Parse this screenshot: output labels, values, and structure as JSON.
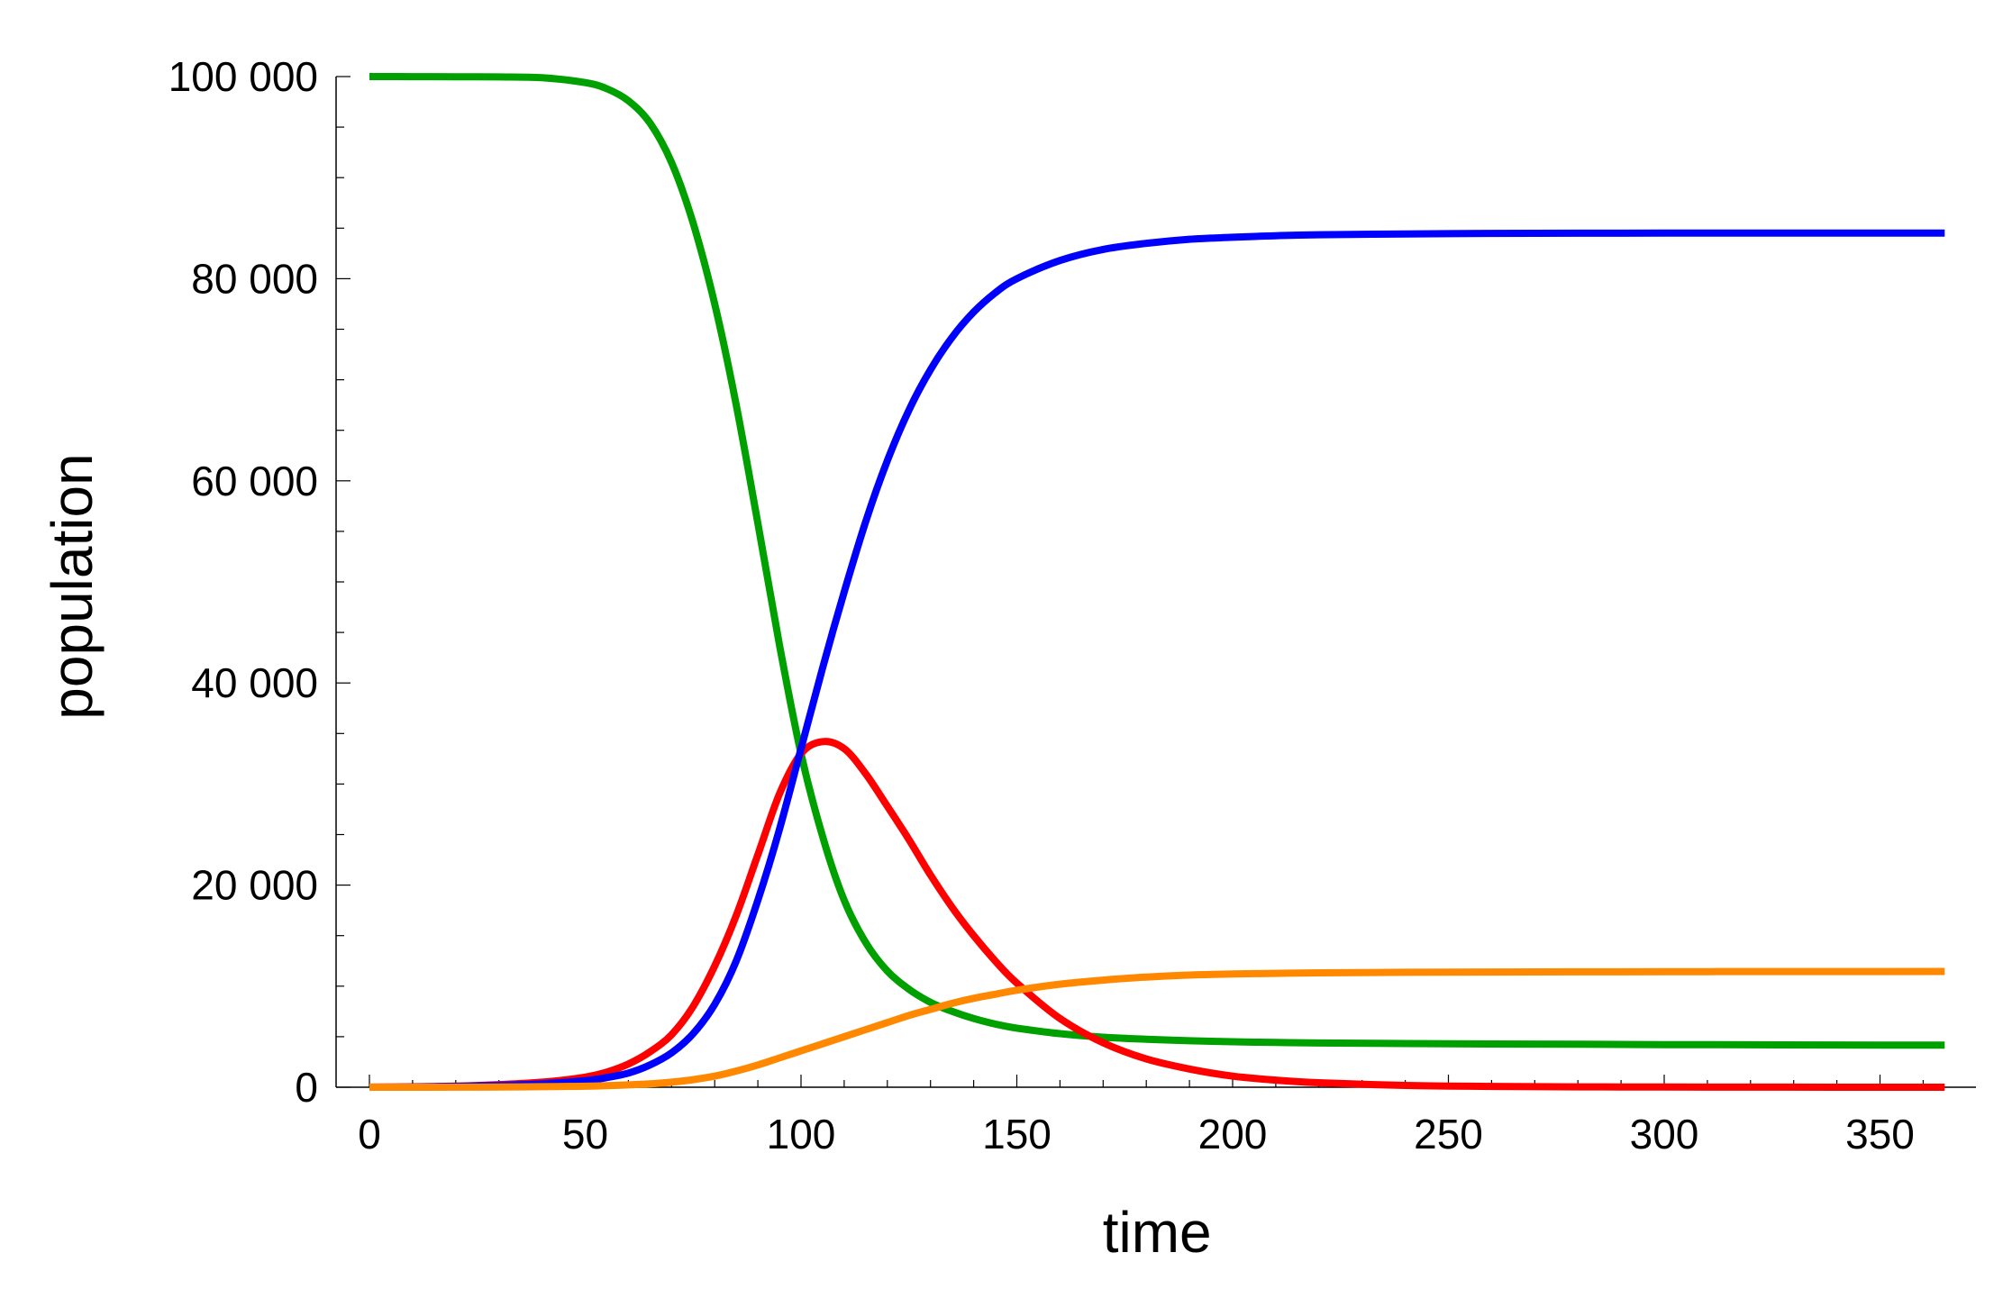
{
  "chart_data": {
    "type": "line",
    "title": "",
    "xlabel": "time",
    "ylabel": "population",
    "xlim": [
      0,
      365
    ],
    "ylim": [
      0,
      100000
    ],
    "x_ticks": [
      0,
      50,
      100,
      150,
      200,
      250,
      300,
      350
    ],
    "x_tick_labels": [
      "0",
      "50",
      "100",
      "150",
      "200",
      "250",
      "300",
      "350"
    ],
    "y_ticks": [
      0,
      20000,
      40000,
      60000,
      80000,
      100000
    ],
    "y_tick_labels": [
      "0",
      "20 000",
      "40 000",
      "60 000",
      "80 000",
      "100 000"
    ],
    "grid": false,
    "legend": "none",
    "x": [
      0,
      10,
      20,
      30,
      40,
      50,
      55,
      60,
      65,
      70,
      75,
      80,
      85,
      90,
      95,
      100,
      105,
      110,
      115,
      120,
      125,
      130,
      135,
      140,
      145,
      150,
      160,
      170,
      180,
      190,
      200,
      210,
      220,
      240,
      260,
      280,
      300,
      320,
      340,
      365
    ],
    "series": [
      {
        "color": "#00a000",
        "values": [
          100000,
          99995,
          99985,
          99960,
          99880,
          99400,
          98800,
          97600,
          95400,
          91500,
          85500,
          77500,
          67500,
          55800,
          43800,
          33000,
          24800,
          18500,
          14300,
          11500,
          9700,
          8400,
          7500,
          6800,
          6250,
          5850,
          5300,
          4950,
          4750,
          4600,
          4500,
          4430,
          4380,
          4320,
          4280,
          4250,
          4220,
          4200,
          4180,
          4160
        ]
      },
      {
        "color": "#ff0000",
        "values": [
          10,
          40,
          110,
          260,
          500,
          1000,
          1500,
          2300,
          3500,
          5200,
          8000,
          12000,
          17000,
          23000,
          29000,
          33000,
          34200,
          33500,
          31000,
          27800,
          24500,
          21000,
          17800,
          15000,
          12500,
          10300,
          6800,
          4400,
          2800,
          1800,
          1100,
          700,
          450,
          180,
          80,
          35,
          15,
          7,
          3,
          1
        ]
      },
      {
        "color": "#0000ff",
        "values": [
          0,
          20,
          90,
          180,
          340,
          650,
          950,
          1400,
          2200,
          3400,
          5300,
          8200,
          12500,
          18500,
          25500,
          33500,
          41500,
          49000,
          56000,
          62000,
          67000,
          71000,
          74200,
          76700,
          78600,
          80000,
          81800,
          82900,
          83500,
          83900,
          84100,
          84250,
          84350,
          84430,
          84480,
          84500,
          84510,
          84515,
          84520,
          84520
        ]
      },
      {
        "color": "#ff8800",
        "values": [
          0,
          0,
          5,
          20,
          50,
          100,
          150,
          230,
          330,
          500,
          750,
          1100,
          1600,
          2200,
          2900,
          3600,
          4300,
          5000,
          5700,
          6400,
          7100,
          7700,
          8300,
          8800,
          9200,
          9600,
          10200,
          10600,
          10900,
          11100,
          11200,
          11270,
          11320,
          11370,
          11400,
          11420,
          11430,
          11440,
          11445,
          11450
        ]
      }
    ]
  }
}
